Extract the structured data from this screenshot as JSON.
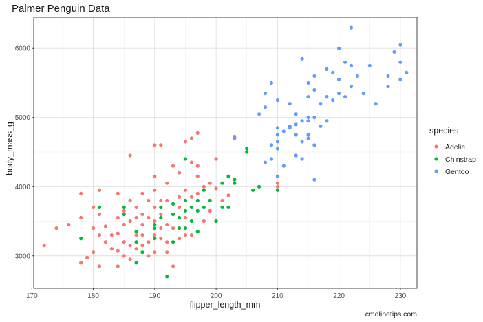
{
  "chart_data": {
    "type": "scatter",
    "title": "Palmer Penguin Data",
    "xlabel": "flipper_length_mm",
    "ylabel": "body_mass_g",
    "xlim": [
      170.3,
      232.7
    ],
    "ylim": [
      2530,
      6450
    ],
    "xticks": [
      170,
      180,
      190,
      200,
      210,
      220,
      230
    ],
    "yticks": [
      3000,
      4000,
      5000,
      6000
    ],
    "grid": true,
    "legend": {
      "title": "species",
      "placement": "right"
    },
    "caption": "cmdlinetips.com",
    "series": [
      {
        "name": "Adelie",
        "color": "#F8766D",
        "points": [
          [
            172,
            3150
          ],
          [
            174,
            3400
          ],
          [
            176,
            3450
          ],
          [
            178,
            3900
          ],
          [
            178,
            3550
          ],
          [
            178,
            2900
          ],
          [
            179,
            2975
          ],
          [
            180,
            3700
          ],
          [
            180,
            3400
          ],
          [
            180,
            3050
          ],
          [
            181,
            3950
          ],
          [
            181,
            3600
          ],
          [
            181,
            3300
          ],
          [
            181,
            2850
          ],
          [
            182,
            3200
          ],
          [
            182,
            3425
          ],
          [
            183,
            3300
          ],
          [
            183,
            3100
          ],
          [
            184,
            3900
          ],
          [
            184,
            3550
          ],
          [
            184,
            3325
          ],
          [
            184,
            3075
          ],
          [
            184,
            2850
          ],
          [
            185,
            3650
          ],
          [
            185,
            3450
          ],
          [
            185,
            3200
          ],
          [
            185,
            3000
          ],
          [
            186,
            3800
          ],
          [
            186,
            4450
          ],
          [
            186,
            3500
          ],
          [
            186,
            3150
          ],
          [
            186,
            2950
          ],
          [
            187,
            3700
          ],
          [
            187,
            3550
          ],
          [
            187,
            3300
          ],
          [
            187,
            3100
          ],
          [
            188,
            3900
          ],
          [
            188,
            3600
          ],
          [
            188,
            3450
          ],
          [
            188,
            3300
          ],
          [
            188,
            3150
          ],
          [
            189,
            3800
          ],
          [
            189,
            3550
          ],
          [
            189,
            3200
          ],
          [
            189,
            3000
          ],
          [
            190,
            4600
          ],
          [
            190,
            4150
          ],
          [
            190,
            3950
          ],
          [
            190,
            3700
          ],
          [
            190,
            3500
          ],
          [
            190,
            3300
          ],
          [
            190,
            3050
          ],
          [
            191,
            4600
          ],
          [
            191,
            3800
          ],
          [
            191,
            3600
          ],
          [
            191,
            3400
          ],
          [
            191,
            3250
          ],
          [
            192,
            4050
          ],
          [
            192,
            3800
          ],
          [
            192,
            3450
          ],
          [
            192,
            3200
          ],
          [
            192,
            3050
          ],
          [
            193,
            4300
          ],
          [
            193,
            3600
          ],
          [
            193,
            3400
          ],
          [
            193,
            2850
          ],
          [
            194,
            4200
          ],
          [
            194,
            3850
          ],
          [
            194,
            3700
          ],
          [
            194,
            3250
          ],
          [
            195,
            4650
          ],
          [
            195,
            3950
          ],
          [
            195,
            3550
          ],
          [
            195,
            3300
          ],
          [
            196,
            4700
          ],
          [
            196,
            4350
          ],
          [
            196,
            3850
          ],
          [
            196,
            3300
          ],
          [
            197,
            4775
          ],
          [
            197,
            4300
          ],
          [
            197,
            4150
          ],
          [
            197,
            3900
          ],
          [
            198,
            4000
          ],
          [
            198,
            3500
          ],
          [
            199,
            4050
          ],
          [
            199,
            3650
          ],
          [
            200,
            4400
          ],
          [
            200,
            3975
          ],
          [
            201,
            4050
          ],
          [
            201,
            3800
          ],
          [
            202,
            3875
          ],
          [
            203,
            4725
          ],
          [
            210,
            4000
          ],
          [
            210,
            4050
          ]
        ]
      },
      {
        "name": "Chinstrap",
        "color": "#00BA38",
        "points": [
          [
            178,
            3250
          ],
          [
            181,
            3700
          ],
          [
            185,
            3600
          ],
          [
            185,
            3700
          ],
          [
            187,
            3350
          ],
          [
            187,
            3200
          ],
          [
            187,
            2900
          ],
          [
            188,
            3050
          ],
          [
            190,
            3450
          ],
          [
            190,
            3250
          ],
          [
            190,
            3400
          ],
          [
            191,
            3700
          ],
          [
            191,
            3550
          ],
          [
            192,
            2700
          ],
          [
            193,
            3750
          ],
          [
            193,
            3600
          ],
          [
            193,
            3200
          ],
          [
            194,
            3550
          ],
          [
            194,
            3400
          ],
          [
            195,
            3800
          ],
          [
            195,
            3650
          ],
          [
            195,
            3400
          ],
          [
            195,
            4400
          ],
          [
            196,
            3700
          ],
          [
            196,
            3500
          ],
          [
            197,
            3800
          ],
          [
            197,
            3350
          ],
          [
            197,
            3650
          ],
          [
            198,
            3950
          ],
          [
            198,
            3700
          ],
          [
            199,
            3800
          ],
          [
            200,
            3500
          ],
          [
            201,
            4050
          ],
          [
            201,
            3700
          ],
          [
            202,
            4150
          ],
          [
            202,
            3700
          ],
          [
            203,
            4050
          ],
          [
            203,
            4100
          ],
          [
            205,
            4550
          ],
          [
            205,
            4500
          ],
          [
            206,
            3950
          ],
          [
            207,
            4000
          ],
          [
            210,
            3950
          ]
        ]
      },
      {
        "name": "Gentoo",
        "color": "#619CFF",
        "points": [
          [
            203,
            4700
          ],
          [
            207,
            5050
          ],
          [
            208,
            4350
          ],
          [
            208,
            5350
          ],
          [
            208,
            5150
          ],
          [
            209,
            4400
          ],
          [
            209,
            4600
          ],
          [
            209,
            5500
          ],
          [
            210,
            4150
          ],
          [
            210,
            4550
          ],
          [
            210,
            4850
          ],
          [
            210,
            4750
          ],
          [
            210,
            5250
          ],
          [
            210,
            4650
          ],
          [
            211,
            4800
          ],
          [
            211,
            4300
          ],
          [
            212,
            4875
          ],
          [
            212,
            5200
          ],
          [
            212,
            4850
          ],
          [
            213,
            4750
          ],
          [
            213,
            4900
          ],
          [
            213,
            4450
          ],
          [
            213,
            5050
          ],
          [
            214,
            4650
          ],
          [
            214,
            4950
          ],
          [
            214,
            5850
          ],
          [
            214,
            4400
          ],
          [
            215,
            4750
          ],
          [
            215,
            5000
          ],
          [
            215,
            5500
          ],
          [
            215,
            5300
          ],
          [
            215,
            4700
          ],
          [
            215,
            4950
          ],
          [
            216,
            4100
          ],
          [
            216,
            5000
          ],
          [
            216,
            5400
          ],
          [
            216,
            5600
          ],
          [
            216,
            4600
          ],
          [
            217,
            5200
          ],
          [
            217,
            4875
          ],
          [
            218,
            5700
          ],
          [
            218,
            5300
          ],
          [
            218,
            4950
          ],
          [
            219,
            5250
          ],
          [
            219,
            5650
          ],
          [
            220,
            5350
          ],
          [
            220,
            6000
          ],
          [
            220,
            5550
          ],
          [
            221,
            5300
          ],
          [
            221,
            5800
          ],
          [
            222,
            6300
          ],
          [
            222,
            5450
          ],
          [
            222,
            5750
          ],
          [
            223,
            5600
          ],
          [
            224,
            5350
          ],
          [
            225,
            5750
          ],
          [
            226,
            5200
          ],
          [
            228,
            5450
          ],
          [
            228,
            5600
          ],
          [
            229,
            5950
          ],
          [
            230,
            5800
          ],
          [
            230,
            6050
          ],
          [
            230,
            5550
          ],
          [
            231,
            5650
          ]
        ]
      }
    ]
  }
}
